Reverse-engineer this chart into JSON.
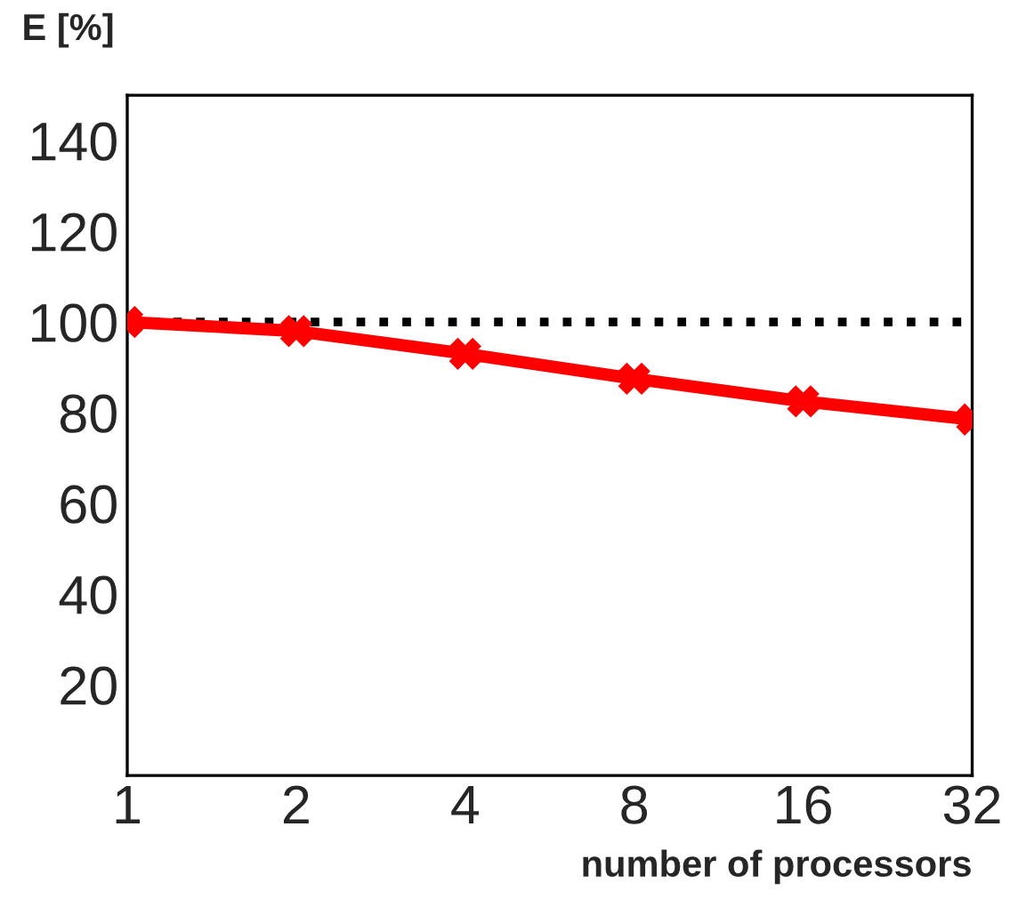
{
  "chart_data": {
    "type": "line",
    "ylabel": "E [%]",
    "xlabel": "number of processors",
    "x": [
      1,
      2,
      4,
      8,
      16,
      32
    ],
    "series": [
      {
        "color": "#ff0000",
        "values": [
          100,
          98,
          93,
          87.5,
          82.5,
          78.5
        ]
      }
    ],
    "log": "x",
    "xlim": [
      1,
      32
    ],
    "xticks": [
      1,
      2,
      4,
      8,
      16,
      32
    ],
    "ylim": [
      0,
      150
    ],
    "yticks": [
      20,
      40,
      60,
      80,
      100,
      120,
      140
    ],
    "ref_lines": [
      {
        "axis": "y",
        "value": 100,
        "color": "#000000",
        "line_style": "dotted"
      }
    ],
    "marker": "cross",
    "line_style": "solid",
    "grid": false,
    "legend": false
  }
}
